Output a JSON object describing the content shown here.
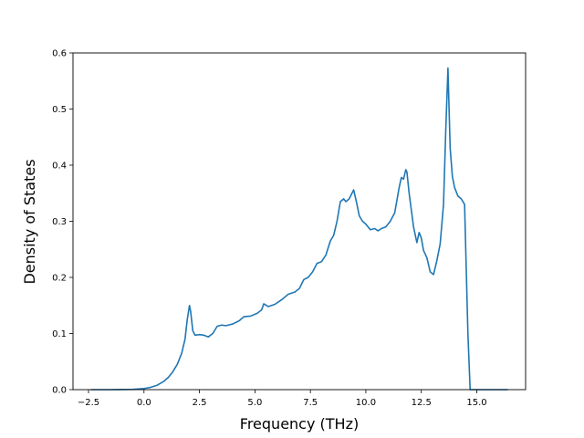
{
  "chart_data": {
    "type": "line",
    "title": "",
    "xlabel": "Frequency (THz)",
    "ylabel": "Density of States",
    "xlim": [
      -3.2,
      17.2
    ],
    "ylim": [
      0.0,
      0.6
    ],
    "xticks": [
      -2.5,
      0.0,
      2.5,
      5.0,
      7.5,
      10.0,
      12.5,
      15.0
    ],
    "xtick_labels": [
      "−2.5",
      "0.0",
      "2.5",
      "5.0",
      "7.5",
      "10.0",
      "12.5",
      "15.0"
    ],
    "yticks": [
      0.0,
      0.1,
      0.2,
      0.3,
      0.4,
      0.5,
      0.6
    ],
    "ytick_labels": [
      "0.0",
      "0.1",
      "0.2",
      "0.3",
      "0.4",
      "0.5",
      "0.6"
    ],
    "grid": false,
    "line_color": "#1f77b4",
    "series": [
      {
        "x": [
          -2.4,
          -1.5,
          -0.5,
          0.0,
          0.3,
          0.6,
          0.9,
          1.1,
          1.3,
          1.5,
          1.7,
          1.85,
          1.95,
          2.05,
          2.1,
          2.2,
          2.3,
          2.5,
          2.7,
          2.9,
          3.1,
          3.3,
          3.5,
          3.7,
          4.0,
          4.3,
          4.5,
          4.8,
          5.1,
          5.3,
          5.4,
          5.6,
          5.9,
          6.2,
          6.5,
          6.8,
          7.0,
          7.2,
          7.4,
          7.6,
          7.8,
          8.0,
          8.2,
          8.4,
          8.55,
          8.7,
          8.85,
          9.0,
          9.1,
          9.25,
          9.45,
          9.6,
          9.7,
          9.85,
          10.0,
          10.2,
          10.4,
          10.55,
          10.7,
          10.9,
          11.1,
          11.3,
          11.5,
          11.6,
          11.7,
          11.8,
          11.85,
          11.95,
          12.05,
          12.15,
          12.3,
          12.4,
          12.5,
          12.6,
          12.75,
          12.9,
          13.05,
          13.2,
          13.35,
          13.5,
          13.6,
          13.7,
          13.8,
          13.9,
          14.0,
          14.15,
          14.3,
          14.45,
          14.6,
          14.7,
          14.8,
          14.9,
          16.4
        ],
        "y": [
          0.0,
          0.0,
          0.0005,
          0.002,
          0.004,
          0.008,
          0.015,
          0.022,
          0.032,
          0.045,
          0.065,
          0.09,
          0.125,
          0.15,
          0.14,
          0.105,
          0.097,
          0.098,
          0.097,
          0.094,
          0.1,
          0.113,
          0.115,
          0.114,
          0.117,
          0.123,
          0.13,
          0.131,
          0.136,
          0.142,
          0.153,
          0.148,
          0.152,
          0.16,
          0.17,
          0.174,
          0.18,
          0.196,
          0.2,
          0.21,
          0.225,
          0.228,
          0.24,
          0.265,
          0.275,
          0.3,
          0.335,
          0.34,
          0.335,
          0.34,
          0.356,
          0.33,
          0.31,
          0.3,
          0.295,
          0.285,
          0.287,
          0.283,
          0.287,
          0.29,
          0.3,
          0.315,
          0.36,
          0.378,
          0.375,
          0.392,
          0.388,
          0.35,
          0.32,
          0.29,
          0.262,
          0.28,
          0.27,
          0.248,
          0.235,
          0.21,
          0.205,
          0.23,
          0.26,
          0.33,
          0.46,
          0.573,
          0.43,
          0.38,
          0.36,
          0.345,
          0.34,
          0.33,
          0.1,
          0.0,
          0.0,
          0.0,
          0.0
        ]
      }
    ]
  }
}
